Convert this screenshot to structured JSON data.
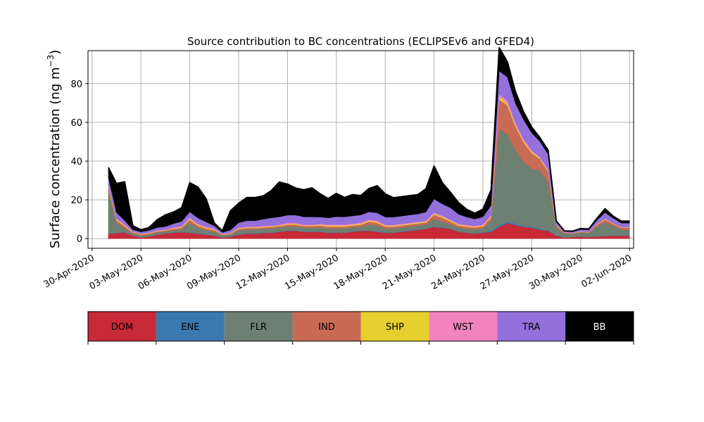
{
  "chart_data": {
    "type": "area",
    "title": "Source contribution to BC concentrations (ECLIPSEv6 and GFED4)",
    "ylabel": "Surface concentration (ng m",
    "ylabel_sup": "−3",
    "ylabel_end": ")",
    "xlabel": "",
    "ylim": [
      -5,
      97
    ],
    "xlim": [
      "2020-04-29T18:00",
      "2020-06-02T06:00"
    ],
    "grid": true,
    "y_ticks": [
      0,
      20,
      40,
      60,
      80
    ],
    "x_ticks": [
      {
        "date": "2020-04-30",
        "label": "30-Apr-2020"
      },
      {
        "date": "2020-05-03",
        "label": "03-May-2020"
      },
      {
        "date": "2020-05-06",
        "label": "06-May-2020"
      },
      {
        "date": "2020-05-09",
        "label": "09-May-2020"
      },
      {
        "date": "2020-05-12",
        "label": "12-May-2020"
      },
      {
        "date": "2020-05-15",
        "label": "15-May-2020"
      },
      {
        "date": "2020-05-18",
        "label": "18-May-2020"
      },
      {
        "date": "2020-05-21",
        "label": "21-May-2020"
      },
      {
        "date": "2020-05-24",
        "label": "24-May-2020"
      },
      {
        "date": "2020-05-27",
        "label": "27-May-2020"
      },
      {
        "date": "2020-05-30",
        "label": "30-May-2020"
      },
      {
        "date": "2020-06-02",
        "label": "02-Jun-2020"
      }
    ],
    "x": [
      "2020-05-01T00:00",
      "2020-05-01T12:00",
      "2020-05-02T00:00",
      "2020-05-02T12:00",
      "2020-05-03T00:00",
      "2020-05-03T12:00",
      "2020-05-04T00:00",
      "2020-05-04T12:00",
      "2020-05-05T00:00",
      "2020-05-05T12:00",
      "2020-05-06T00:00",
      "2020-05-06T12:00",
      "2020-05-07T00:00",
      "2020-05-07T12:00",
      "2020-05-08T00:00",
      "2020-05-08T12:00",
      "2020-05-09T00:00",
      "2020-05-09T12:00",
      "2020-05-10T00:00",
      "2020-05-10T12:00",
      "2020-05-11T00:00",
      "2020-05-11T12:00",
      "2020-05-12T00:00",
      "2020-05-12T12:00",
      "2020-05-13T00:00",
      "2020-05-13T12:00",
      "2020-05-14T00:00",
      "2020-05-14T12:00",
      "2020-05-15T00:00",
      "2020-05-15T12:00",
      "2020-05-16T00:00",
      "2020-05-16T12:00",
      "2020-05-17T00:00",
      "2020-05-17T12:00",
      "2020-05-18T00:00",
      "2020-05-18T12:00",
      "2020-05-19T00:00",
      "2020-05-19T12:00",
      "2020-05-20T00:00",
      "2020-05-20T12:00",
      "2020-05-21T00:00",
      "2020-05-21T12:00",
      "2020-05-22T00:00",
      "2020-05-22T12:00",
      "2020-05-23T00:00",
      "2020-05-23T12:00",
      "2020-05-24T00:00",
      "2020-05-24T12:00",
      "2020-05-25T00:00",
      "2020-05-25T12:00",
      "2020-05-26T00:00",
      "2020-05-26T12:00",
      "2020-05-27T00:00",
      "2020-05-27T12:00",
      "2020-05-28T00:00",
      "2020-05-28T12:00",
      "2020-05-29T00:00",
      "2020-05-29T12:00",
      "2020-05-30T00:00",
      "2020-05-30T12:00",
      "2020-05-31T00:00",
      "2020-05-31T12:00",
      "2020-06-01T00:00",
      "2020-06-01T12:00",
      "2020-06-02T00:00"
    ],
    "series": [
      {
        "name": "DOM",
        "color": "#c82937",
        "values": [
          2.5,
          2.8,
          3.2,
          1.5,
          0.5,
          1.0,
          2.0,
          2.5,
          3.0,
          3.2,
          3.0,
          2.5,
          2.0,
          1.5,
          0.5,
          1.0,
          2.0,
          2.5,
          2.5,
          2.8,
          3.0,
          3.5,
          4.0,
          4.0,
          3.5,
          3.5,
          3.5,
          3.0,
          3.0,
          3.0,
          3.5,
          4.0,
          4.0,
          3.5,
          3.0,
          3.0,
          3.5,
          4.0,
          4.5,
          5.0,
          6.0,
          5.5,
          5.0,
          3.5,
          3.0,
          2.5,
          3.0,
          3.5,
          6.0,
          8.0,
          7.0,
          6.0,
          5.5,
          4.5,
          4.0,
          1.5,
          0.5,
          0.8,
          1.0,
          0.8,
          1.0,
          1.2,
          1.5,
          1.5,
          1.5
        ]
      },
      {
        "name": "ENE",
        "color": "#3a78b0",
        "values": [
          0.2,
          0.2,
          0.2,
          0.1,
          0.1,
          0.1,
          0.2,
          0.2,
          0.2,
          0.2,
          0.2,
          0.2,
          0.2,
          0.1,
          0.1,
          0.1,
          0.2,
          0.2,
          0.2,
          0.2,
          0.2,
          0.2,
          0.2,
          0.2,
          0.2,
          0.2,
          0.2,
          0.2,
          0.2,
          0.2,
          0.2,
          0.2,
          0.2,
          0.2,
          0.2,
          0.2,
          0.2,
          0.3,
          0.3,
          0.3,
          0.3,
          0.3,
          0.3,
          0.2,
          0.2,
          0.2,
          0.3,
          0.5,
          0.8,
          0.8,
          0.7,
          0.6,
          0.6,
          0.5,
          0.5,
          0.2,
          0.1,
          0.1,
          0.1,
          0.1,
          0.1,
          0.1,
          0.1,
          0.1,
          0.1
        ]
      },
      {
        "name": "FLR",
        "color": "#6e8071",
        "values": [
          22,
          5,
          2,
          1,
          1,
          1,
          1,
          1,
          1,
          1.5,
          5,
          3,
          2,
          2,
          1,
          1,
          2,
          2,
          2,
          2,
          2,
          2,
          2,
          2,
          2,
          2,
          2,
          2,
          2,
          2,
          2,
          2,
          3,
          3,
          2,
          2,
          2,
          2,
          2,
          2,
          4,
          3,
          2,
          2,
          2,
          2,
          2,
          5,
          50,
          45,
          38,
          33,
          30,
          30,
          25,
          4,
          2,
          1.5,
          2,
          2,
          5,
          7,
          5,
          3,
          3
        ]
      },
      {
        "name": "IND",
        "color": "#c86a54",
        "values": [
          2,
          1.5,
          1,
          0.5,
          0.5,
          0.5,
          0.5,
          0.5,
          0.8,
          0.8,
          1.5,
          1,
          1,
          0.8,
          0.4,
          0.4,
          0.8,
          0.8,
          0.8,
          0.8,
          0.8,
          0.8,
          1,
          1,
          0.8,
          0.8,
          1,
          1,
          1,
          1,
          1,
          1,
          1.5,
          1.5,
          1,
          1,
          1,
          1,
          1,
          1,
          2,
          2,
          1.5,
          1,
          1,
          1,
          1,
          2,
          15,
          15,
          12,
          10,
          8,
          6,
          5,
          1,
          0.5,
          0.4,
          0.4,
          0.4,
          1,
          1.5,
          1,
          1,
          1
        ]
      },
      {
        "name": "SHP",
        "color": "#e6cf2e",
        "values": [
          0.4,
          0.4,
          0.4,
          0.2,
          0.2,
          0.2,
          0.2,
          0.2,
          0.3,
          0.3,
          0.5,
          0.4,
          0.4,
          0.3,
          0.2,
          0.2,
          0.3,
          0.3,
          0.3,
          0.3,
          0.3,
          0.3,
          0.4,
          0.4,
          0.3,
          0.3,
          0.4,
          0.5,
          0.6,
          0.5,
          0.5,
          0.5,
          0.5,
          0.5,
          0.4,
          0.4,
          0.4,
          0.4,
          0.4,
          0.4,
          0.5,
          0.5,
          0.5,
          0.4,
          0.4,
          0.4,
          0.4,
          0.5,
          1.2,
          1.0,
          0.8,
          0.7,
          0.6,
          0.5,
          0.5,
          0.2,
          0.1,
          0.1,
          0.1,
          0.1,
          0.2,
          0.3,
          0.2,
          0.2,
          0.2
        ]
      },
      {
        "name": "WST",
        "color": "#f184bf",
        "values": [
          0.6,
          0.5,
          0.5,
          0.3,
          0.2,
          0.2,
          0.3,
          0.3,
          0.4,
          0.4,
          0.6,
          0.5,
          0.5,
          0.4,
          0.2,
          0.2,
          0.4,
          0.4,
          0.4,
          0.4,
          0.4,
          0.4,
          0.5,
          0.5,
          0.4,
          0.4,
          0.5,
          0.5,
          0.5,
          0.5,
          0.5,
          0.5,
          0.6,
          0.6,
          0.5,
          0.5,
          0.5,
          0.5,
          0.5,
          0.5,
          0.6,
          0.6,
          0.6,
          0.5,
          0.5,
          0.5,
          0.5,
          0.6,
          1.5,
          1.5,
          1.2,
          1.0,
          0.8,
          0.6,
          0.6,
          0.2,
          0.1,
          0.1,
          0.1,
          0.1,
          0.2,
          0.3,
          0.2,
          0.2,
          0.2
        ]
      },
      {
        "name": "TRA",
        "color": "#9370db",
        "values": [
          4,
          3,
          2,
          1,
          1,
          1.2,
          1.5,
          1.5,
          2,
          2.5,
          3,
          3,
          2.5,
          1.5,
          0.8,
          1.5,
          2.5,
          3,
          3,
          3.5,
          4,
          4,
          4,
          4,
          4,
          4,
          3.5,
          3.5,
          4,
          4,
          4,
          4,
          4,
          4,
          4,
          4,
          4,
          4,
          4,
          4.5,
          7,
          6,
          6,
          5,
          4,
          3.5,
          4,
          5,
          12,
          12,
          10,
          10,
          9,
          8,
          8,
          1.5,
          0.5,
          0.6,
          1,
          1,
          2,
          3,
          2.5,
          2,
          2
        ]
      },
      {
        "name": "BB",
        "color": "#000000",
        "values": [
          5,
          15,
          20,
          2,
          1,
          1.5,
          4,
          6,
          6,
          7,
          15,
          16,
          12,
          1.5,
          0.8,
          10,
          10,
          12,
          12,
          12,
          14,
          18,
          16,
          14,
          14,
          15,
          12,
          10,
          12,
          10,
          11,
          10,
          12,
          14,
          12,
          10,
          10,
          10,
          10,
          12,
          17,
          11,
          8,
          6,
          4,
          3,
          4,
          8,
          12,
          8,
          6,
          4,
          3,
          2,
          2,
          0.5,
          0.2,
          0.2,
          0.5,
          0.5,
          1,
          2,
          1,
          1,
          1
        ]
      }
    ]
  }
}
